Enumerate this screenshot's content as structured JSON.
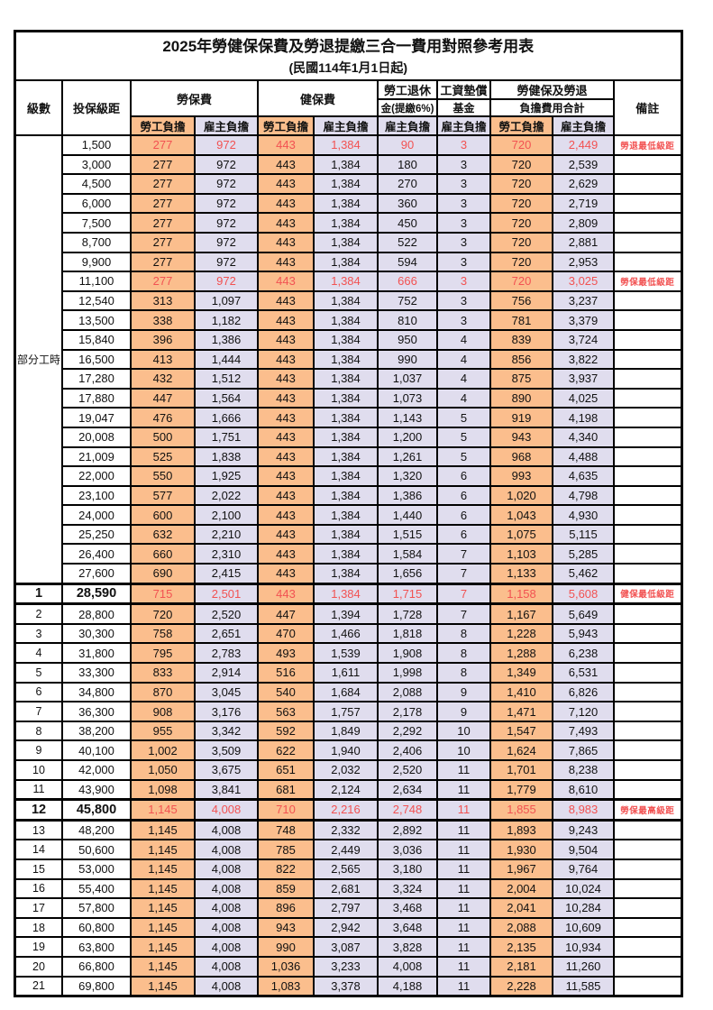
{
  "title": "2025年勞健保保費及勞退提繳三合一費用對照參考用表",
  "subtitle": "(民國114年1月1日起)",
  "colors": {
    "employee_bg": "#fbbe8d",
    "employer_bg": "#e0ddee",
    "highlight_red": "#f25252",
    "grid": "#000000"
  },
  "header": {
    "level": "級數",
    "salary_bracket": "投保級距",
    "labor_insurance": "勞保費",
    "health_insurance": "健保費",
    "pension_line1": "勞工退休",
    "pension_line2": "金(提繳6%)",
    "wage_fund_line1": "工資墊償",
    "wage_fund_line2": "基金",
    "total_line1": "勞健保及勞退",
    "total_line2": "負擔費用合計",
    "remark": "備註",
    "employee_share": "勞工負擔",
    "employer_share": "雇主負擔"
  },
  "part_time_label": "部分工時",
  "part_time_rowspan": 23,
  "rows": [
    {
      "level": "",
      "salary": "1,500",
      "v": [
        "277",
        "972",
        "443",
        "1,384",
        "90",
        "3",
        "720",
        "2,449"
      ],
      "remark": "勞退最低級距",
      "red": true,
      "emph": false
    },
    {
      "level": "",
      "salary": "3,000",
      "v": [
        "277",
        "972",
        "443",
        "1,384",
        "180",
        "3",
        "720",
        "2,539"
      ],
      "remark": "",
      "red": false,
      "emph": false
    },
    {
      "level": "",
      "salary": "4,500",
      "v": [
        "277",
        "972",
        "443",
        "1,384",
        "270",
        "3",
        "720",
        "2,629"
      ],
      "remark": "",
      "red": false,
      "emph": false
    },
    {
      "level": "",
      "salary": "6,000",
      "v": [
        "277",
        "972",
        "443",
        "1,384",
        "360",
        "3",
        "720",
        "2,719"
      ],
      "remark": "",
      "red": false,
      "emph": false
    },
    {
      "level": "",
      "salary": "7,500",
      "v": [
        "277",
        "972",
        "443",
        "1,384",
        "450",
        "3",
        "720",
        "2,809"
      ],
      "remark": "",
      "red": false,
      "emph": false
    },
    {
      "level": "",
      "salary": "8,700",
      "v": [
        "277",
        "972",
        "443",
        "1,384",
        "522",
        "3",
        "720",
        "2,881"
      ],
      "remark": "",
      "red": false,
      "emph": false
    },
    {
      "level": "",
      "salary": "9,900",
      "v": [
        "277",
        "972",
        "443",
        "1,384",
        "594",
        "3",
        "720",
        "2,953"
      ],
      "remark": "",
      "red": false,
      "emph": false
    },
    {
      "level": "",
      "salary": "11,100",
      "v": [
        "277",
        "972",
        "443",
        "1,384",
        "666",
        "3",
        "720",
        "3,025"
      ],
      "remark": "勞保最低級距",
      "red": true,
      "emph": false
    },
    {
      "level": "",
      "salary": "12,540",
      "v": [
        "313",
        "1,097",
        "443",
        "1,384",
        "752",
        "3",
        "756",
        "3,237"
      ],
      "remark": "",
      "red": false,
      "emph": false
    },
    {
      "level": "",
      "salary": "13,500",
      "v": [
        "338",
        "1,182",
        "443",
        "1,384",
        "810",
        "3",
        "781",
        "3,379"
      ],
      "remark": "",
      "red": false,
      "emph": false
    },
    {
      "level": "",
      "salary": "15,840",
      "v": [
        "396",
        "1,386",
        "443",
        "1,384",
        "950",
        "4",
        "839",
        "3,724"
      ],
      "remark": "",
      "red": false,
      "emph": false
    },
    {
      "level": "",
      "salary": "16,500",
      "v": [
        "413",
        "1,444",
        "443",
        "1,384",
        "990",
        "4",
        "856",
        "3,822"
      ],
      "remark": "",
      "red": false,
      "emph": false
    },
    {
      "level": "",
      "salary": "17,280",
      "v": [
        "432",
        "1,512",
        "443",
        "1,384",
        "1,037",
        "4",
        "875",
        "3,937"
      ],
      "remark": "",
      "red": false,
      "emph": false
    },
    {
      "level": "",
      "salary": "17,880",
      "v": [
        "447",
        "1,564",
        "443",
        "1,384",
        "1,073",
        "4",
        "890",
        "4,025"
      ],
      "remark": "",
      "red": false,
      "emph": false
    },
    {
      "level": "",
      "salary": "19,047",
      "v": [
        "476",
        "1,666",
        "443",
        "1,384",
        "1,143",
        "5",
        "919",
        "4,198"
      ],
      "remark": "",
      "red": false,
      "emph": false
    },
    {
      "level": "",
      "salary": "20,008",
      "v": [
        "500",
        "1,751",
        "443",
        "1,384",
        "1,200",
        "5",
        "943",
        "4,340"
      ],
      "remark": "",
      "red": false,
      "emph": false
    },
    {
      "level": "",
      "salary": "21,009",
      "v": [
        "525",
        "1,838",
        "443",
        "1,384",
        "1,261",
        "5",
        "968",
        "4,488"
      ],
      "remark": "",
      "red": false,
      "emph": false
    },
    {
      "level": "",
      "salary": "22,000",
      "v": [
        "550",
        "1,925",
        "443",
        "1,384",
        "1,320",
        "6",
        "993",
        "4,635"
      ],
      "remark": "",
      "red": false,
      "emph": false
    },
    {
      "level": "",
      "salary": "23,100",
      "v": [
        "577",
        "2,022",
        "443",
        "1,384",
        "1,386",
        "6",
        "1,020",
        "4,798"
      ],
      "remark": "",
      "red": false,
      "emph": false
    },
    {
      "level": "",
      "salary": "24,000",
      "v": [
        "600",
        "2,100",
        "443",
        "1,384",
        "1,440",
        "6",
        "1,043",
        "4,930"
      ],
      "remark": "",
      "red": false,
      "emph": false
    },
    {
      "level": "",
      "salary": "25,250",
      "v": [
        "632",
        "2,210",
        "443",
        "1,384",
        "1,515",
        "6",
        "1,075",
        "5,115"
      ],
      "remark": "",
      "red": false,
      "emph": false
    },
    {
      "level": "",
      "salary": "26,400",
      "v": [
        "660",
        "2,310",
        "443",
        "1,384",
        "1,584",
        "7",
        "1,103",
        "5,285"
      ],
      "remark": "",
      "red": false,
      "emph": false
    },
    {
      "level": "",
      "salary": "27,600",
      "v": [
        "690",
        "2,415",
        "443",
        "1,384",
        "1,656",
        "7",
        "1,133",
        "5,462"
      ],
      "remark": "",
      "red": false,
      "emph": false
    },
    {
      "level": "1",
      "salary": "28,590",
      "v": [
        "715",
        "2,501",
        "443",
        "1,384",
        "1,715",
        "7",
        "1,158",
        "5,608"
      ],
      "remark": "健保最低級距",
      "red": true,
      "emph": true
    },
    {
      "level": "2",
      "salary": "28,800",
      "v": [
        "720",
        "2,520",
        "447",
        "1,394",
        "1,728",
        "7",
        "1,167",
        "5,649"
      ],
      "remark": "",
      "red": false,
      "emph": false
    },
    {
      "level": "3",
      "salary": "30,300",
      "v": [
        "758",
        "2,651",
        "470",
        "1,466",
        "1,818",
        "8",
        "1,228",
        "5,943"
      ],
      "remark": "",
      "red": false,
      "emph": false
    },
    {
      "level": "4",
      "salary": "31,800",
      "v": [
        "795",
        "2,783",
        "493",
        "1,539",
        "1,908",
        "8",
        "1,288",
        "6,238"
      ],
      "remark": "",
      "red": false,
      "emph": false
    },
    {
      "level": "5",
      "salary": "33,300",
      "v": [
        "833",
        "2,914",
        "516",
        "1,611",
        "1,998",
        "8",
        "1,349",
        "6,531"
      ],
      "remark": "",
      "red": false,
      "emph": false
    },
    {
      "level": "6",
      "salary": "34,800",
      "v": [
        "870",
        "3,045",
        "540",
        "1,684",
        "2,088",
        "9",
        "1,410",
        "6,826"
      ],
      "remark": "",
      "red": false,
      "emph": false
    },
    {
      "level": "7",
      "salary": "36,300",
      "v": [
        "908",
        "3,176",
        "563",
        "1,757",
        "2,178",
        "9",
        "1,471",
        "7,120"
      ],
      "remark": "",
      "red": false,
      "emph": false
    },
    {
      "level": "8",
      "salary": "38,200",
      "v": [
        "955",
        "3,342",
        "592",
        "1,849",
        "2,292",
        "10",
        "1,547",
        "7,493"
      ],
      "remark": "",
      "red": false,
      "emph": false
    },
    {
      "level": "9",
      "salary": "40,100",
      "v": [
        "1,002",
        "3,509",
        "622",
        "1,940",
        "2,406",
        "10",
        "1,624",
        "7,865"
      ],
      "remark": "",
      "red": false,
      "emph": false
    },
    {
      "level": "10",
      "salary": "42,000",
      "v": [
        "1,050",
        "3,675",
        "651",
        "2,032",
        "2,520",
        "11",
        "1,701",
        "8,238"
      ],
      "remark": "",
      "red": false,
      "emph": false
    },
    {
      "level": "11",
      "salary": "43,900",
      "v": [
        "1,098",
        "3,841",
        "681",
        "2,124",
        "2,634",
        "11",
        "1,779",
        "8,610"
      ],
      "remark": "",
      "red": false,
      "emph": false
    },
    {
      "level": "12",
      "salary": "45,800",
      "v": [
        "1,145",
        "4,008",
        "710",
        "2,216",
        "2,748",
        "11",
        "1,855",
        "8,983"
      ],
      "remark": "勞保最高級距",
      "red": true,
      "emph": true
    },
    {
      "level": "13",
      "salary": "48,200",
      "v": [
        "1,145",
        "4,008",
        "748",
        "2,332",
        "2,892",
        "11",
        "1,893",
        "9,243"
      ],
      "remark": "",
      "red": false,
      "emph": false
    },
    {
      "level": "14",
      "salary": "50,600",
      "v": [
        "1,145",
        "4,008",
        "785",
        "2,449",
        "3,036",
        "11",
        "1,930",
        "9,504"
      ],
      "remark": "",
      "red": false,
      "emph": false
    },
    {
      "level": "15",
      "salary": "53,000",
      "v": [
        "1,145",
        "4,008",
        "822",
        "2,565",
        "3,180",
        "11",
        "1,967",
        "9,764"
      ],
      "remark": "",
      "red": false,
      "emph": false
    },
    {
      "level": "16",
      "salary": "55,400",
      "v": [
        "1,145",
        "4,008",
        "859",
        "2,681",
        "3,324",
        "11",
        "2,004",
        "10,024"
      ],
      "remark": "",
      "red": false,
      "emph": false
    },
    {
      "level": "17",
      "salary": "57,800",
      "v": [
        "1,145",
        "4,008",
        "896",
        "2,797",
        "3,468",
        "11",
        "2,041",
        "10,284"
      ],
      "remark": "",
      "red": false,
      "emph": false
    },
    {
      "level": "18",
      "salary": "60,800",
      "v": [
        "1,145",
        "4,008",
        "943",
        "2,942",
        "3,648",
        "11",
        "2,088",
        "10,609"
      ],
      "remark": "",
      "red": false,
      "emph": false
    },
    {
      "level": "19",
      "salary": "63,800",
      "v": [
        "1,145",
        "4,008",
        "990",
        "3,087",
        "3,828",
        "11",
        "2,135",
        "10,934"
      ],
      "remark": "",
      "red": false,
      "emph": false
    },
    {
      "level": "20",
      "salary": "66,800",
      "v": [
        "1,145",
        "4,008",
        "1,036",
        "3,233",
        "4,008",
        "11",
        "2,181",
        "11,260"
      ],
      "remark": "",
      "red": false,
      "emph": false
    },
    {
      "level": "21",
      "salary": "69,800",
      "v": [
        "1,145",
        "4,008",
        "1,083",
        "3,378",
        "4,188",
        "11",
        "2,228",
        "11,585"
      ],
      "remark": "",
      "red": false,
      "emph": false
    }
  ]
}
